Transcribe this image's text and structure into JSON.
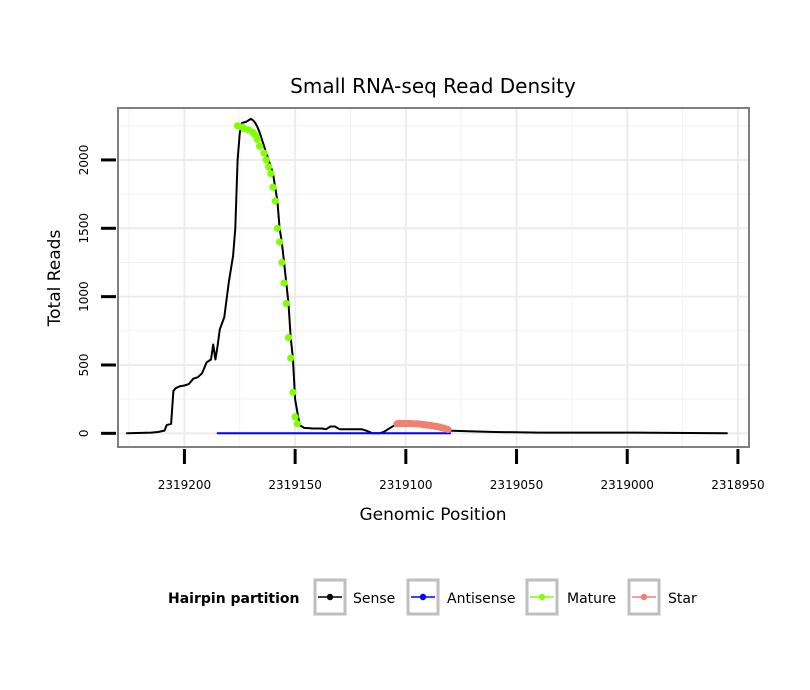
{
  "chart_data": {
    "type": "line",
    "title": "Small RNA-seq Read Density",
    "xlabel": "Genomic Position",
    "ylabel": "Total Reads",
    "x_reversed": true,
    "xlim": [
      2319230,
      2318945
    ],
    "ylim": [
      -100,
      2380
    ],
    "x_ticks": [
      2319200,
      2319150,
      2319100,
      2319050,
      2319000,
      2318950
    ],
    "x_tick_labels": [
      "2319200",
      "2319150",
      "2319100",
      "2319050",
      "2319000",
      "2318950"
    ],
    "y_ticks": [
      0,
      500,
      1000,
      1500,
      2000
    ],
    "y_tick_labels": [
      "0",
      "500",
      "1000",
      "1500",
      "2000"
    ],
    "grid": true,
    "legend": {
      "title": "Hairpin partition",
      "position": "bottom",
      "entries": [
        {
          "label": "Sense",
          "color": "#000000"
        },
        {
          "label": "Antisense",
          "color": "#0000ff"
        },
        {
          "label": "Mature",
          "color": "#7fff00"
        },
        {
          "label": "Star",
          "color": "#f08070"
        }
      ]
    },
    "series": [
      {
        "name": "Sense",
        "color": "#000000",
        "style": "line",
        "x": [
          2319226,
          2319215,
          2319212,
          2319209,
          2319208,
          2319206,
          2319205,
          2319204,
          2319202,
          2319200,
          2319198,
          2319196,
          2319194,
          2319192,
          2319190,
          2319188,
          2319187,
          2319186,
          2319185,
          2319184,
          2319182,
          2319180,
          2319178,
          2319177,
          2319176,
          2319175,
          2319174,
          2319172,
          2319170,
          2319169,
          2319168,
          2319167,
          2319166,
          2319165,
          2319164,
          2319163,
          2319162,
          2319161,
          2319160,
          2319159,
          2319158,
          2319157,
          2319156,
          2319155,
          2319154,
          2319153,
          2319152,
          2319151,
          2319150,
          2319148,
          2319146,
          2319144,
          2319142,
          2319140,
          2319138,
          2319136,
          2319134,
          2319132,
          2319130,
          2319128,
          2319126,
          2319124,
          2319122,
          2319120,
          2319118,
          2319115,
          2319112,
          2319110,
          2319108,
          2319106,
          2319104,
          2319102,
          2319100,
          2319097,
          2319094,
          2319090,
          2319086,
          2319081,
          2319060,
          2319040,
          2319000,
          2318955
        ],
        "y": [
          0,
          5,
          10,
          20,
          60,
          70,
          310,
          330,
          345,
          350,
          360,
          400,
          410,
          440,
          520,
          540,
          650,
          540,
          640,
          760,
          850,
          1100,
          1300,
          1500,
          2000,
          2200,
          2270,
          2280,
          2300,
          2290,
          2270,
          2240,
          2200,
          2150,
          2100,
          2050,
          2000,
          1950,
          1900,
          1800,
          1700,
          1500,
          1400,
          1250,
          1100,
          950,
          700,
          550,
          250,
          60,
          40,
          38,
          35,
          35,
          35,
          30,
          50,
          50,
          30,
          30,
          30,
          30,
          30,
          30,
          20,
          0,
          0,
          10,
          30,
          50,
          70,
          70,
          70,
          70,
          65,
          55,
          40,
          20,
          10,
          5,
          5,
          0
        ]
      },
      {
        "name": "Antisense",
        "color": "#0000ff",
        "style": "line",
        "x": [
          2319185,
          2319080
        ],
        "y": [
          0,
          0
        ]
      },
      {
        "name": "Mature",
        "color": "#7fff00",
        "style": "points",
        "x": [
          2319176,
          2319174,
          2319173,
          2319171,
          2319169,
          2319168,
          2319167,
          2319166,
          2319164,
          2319163,
          2319162,
          2319161,
          2319160,
          2319159,
          2319158,
          2319157,
          2319156,
          2319155,
          2319154,
          2319153,
          2319152,
          2319151,
          2319150,
          2319149
        ],
        "y": [
          2250,
          2240,
          2230,
          2220,
          2200,
          2180,
          2150,
          2100,
          2050,
          2000,
          1950,
          1900,
          1800,
          1700,
          1500,
          1400,
          1250,
          1100,
          950,
          700,
          550,
          300,
          120,
          70
        ]
      },
      {
        "name": "Star",
        "color": "#f08070",
        "style": "points",
        "x": [
          2319104,
          2319103,
          2319102,
          2319101,
          2319100,
          2319099,
          2319098,
          2319097,
          2319096,
          2319095,
          2319094,
          2319093,
          2319092,
          2319091,
          2319090,
          2319089,
          2319088,
          2319087,
          2319086,
          2319085,
          2319084,
          2319083,
          2319082,
          2319081
        ],
        "y": [
          70,
          72,
          72,
          72,
          72,
          72,
          72,
          70,
          70,
          70,
          68,
          66,
          64,
          62,
          60,
          58,
          55,
          52,
          50,
          46,
          42,
          38,
          33,
          28
        ]
      }
    ]
  }
}
